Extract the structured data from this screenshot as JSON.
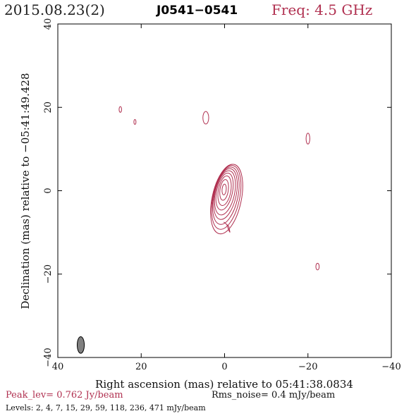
{
  "header": {
    "date": "2015.08.23(2)",
    "source": "J0541−0541",
    "frequency": "Freq: 4.5 GHz"
  },
  "footer": {
    "peak": "Peak_lev=  0.762 Jy/beam",
    "rms": "Rms_noise=  0.4 mJy/beam",
    "levels": "Levels:   2,   4,   7,  15,  29,  59, 118, 236, 471 mJy/beam"
  },
  "colors": {
    "contour": "#b03050",
    "beam": "#808080"
  },
  "chart_data": {
    "type": "contour",
    "xlabel": "Right ascension (mas) relative to 05:41:38.0834",
    "ylabel": "Declination (mas) relative to −05:41:49.428",
    "xlim": [
      40,
      -40
    ],
    "ylim": [
      -40,
      40
    ],
    "x_ticks": [
      40,
      20,
      0,
      -20,
      -40
    ],
    "x_tick_labels": [
      "40",
      "20",
      "0",
      "−20",
      "−40"
    ],
    "y_ticks": [
      -40,
      -20,
      0,
      20,
      40
    ],
    "y_tick_labels": [
      "−40",
      "−20",
      "0",
      "20",
      "40"
    ],
    "peak_jy_per_beam": 0.762,
    "rms_mjy_per_beam": 0.4,
    "contour_levels_mjy": [
      2,
      4,
      7,
      15,
      29,
      59,
      118,
      236,
      471
    ],
    "core": {
      "center": [
        0,
        0
      ],
      "contours": [
        {
          "cx": -0.5,
          "cy": -2.0,
          "rx": 3.5,
          "ry": 8.5,
          "rot": 12
        },
        {
          "cx": -0.4,
          "cy": -1.6,
          "rx": 3.2,
          "ry": 7.8,
          "rot": 12
        },
        {
          "cx": -0.3,
          "cy": -1.2,
          "rx": 2.9,
          "ry": 7.0,
          "rot": 12
        },
        {
          "cx": -0.2,
          "cy": -0.8,
          "rx": 2.6,
          "ry": 6.2,
          "rot": 12
        },
        {
          "cx": -0.1,
          "cy": -0.5,
          "rx": 2.3,
          "ry": 5.4,
          "rot": 12
        },
        {
          "cx": 0.0,
          "cy": -0.2,
          "rx": 1.9,
          "ry": 4.5,
          "rot": 12
        },
        {
          "cx": 0.0,
          "cy": 0.0,
          "rx": 1.5,
          "ry": 3.6,
          "rot": 10
        },
        {
          "cx": 0.1,
          "cy": 0.2,
          "rx": 1.0,
          "ry": 2.5,
          "rot": 8
        },
        {
          "cx": 0.1,
          "cy": 0.3,
          "rx": 0.5,
          "ry": 1.3,
          "rot": 5
        }
      ],
      "extension": [
        [
          -0.5,
          -8
        ],
        [
          -1.0,
          -9.5
        ],
        [
          -1.3,
          -10.0
        ],
        [
          -1.0,
          -8.5
        ],
        [
          0.2,
          -7.5
        ]
      ]
    },
    "isolated_components": [
      {
        "x": 4.5,
        "y": 17.5,
        "rx": 0.7,
        "ry": 1.5
      },
      {
        "x": 25.0,
        "y": 19.5,
        "rx": 0.3,
        "ry": 0.7
      },
      {
        "x": 21.5,
        "y": 16.5,
        "rx": 0.25,
        "ry": 0.6
      },
      {
        "x": -20.0,
        "y": 12.5,
        "rx": 0.45,
        "ry": 1.3
      },
      {
        "x": -22.3,
        "y": -18.2,
        "rx": 0.4,
        "ry": 0.8
      }
    ],
    "beam": {
      "x": 34.5,
      "y": -37.0,
      "major": 4.0,
      "minor": 1.7,
      "pa": 0
    }
  }
}
